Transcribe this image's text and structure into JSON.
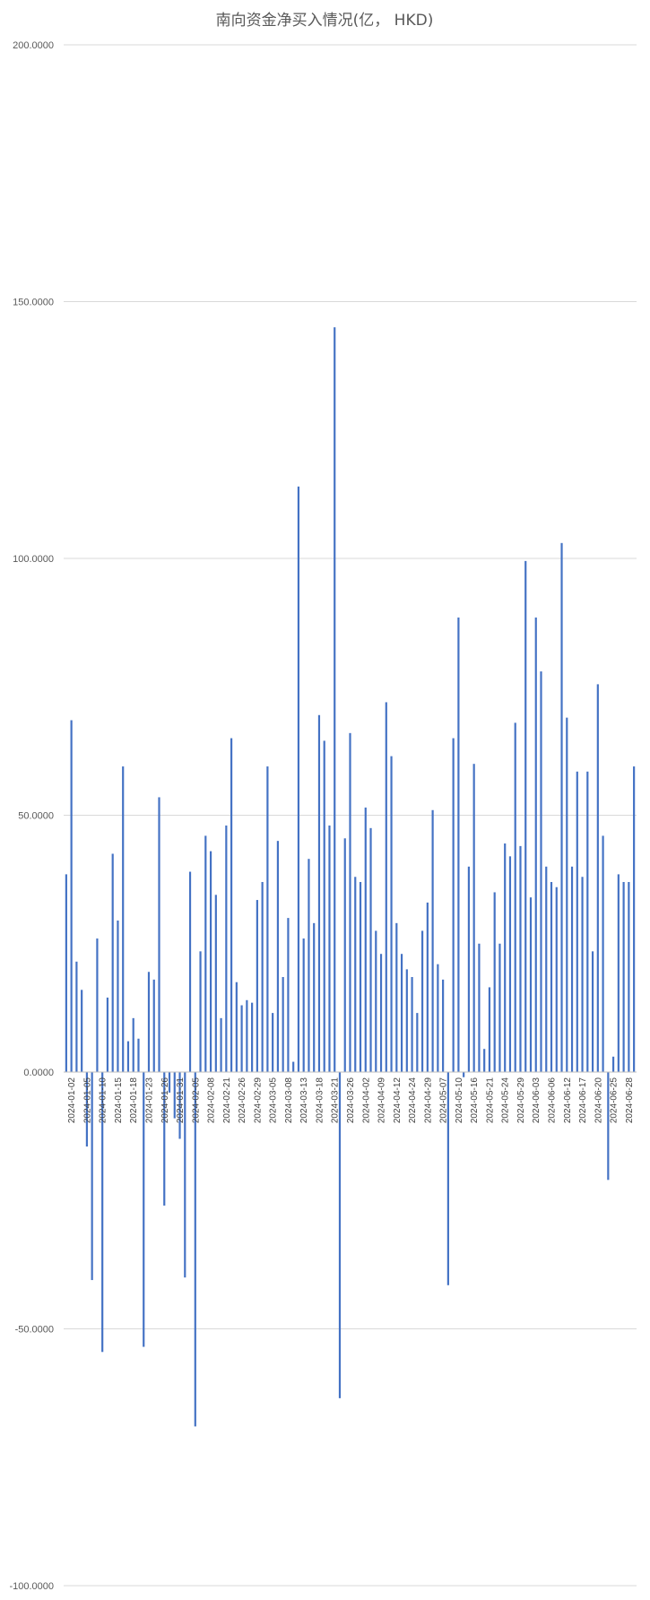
{
  "chart_data": {
    "type": "bar",
    "title": "南向资金净买入情况(亿，  HKD)",
    "xlabel": "",
    "ylabel": "",
    "ylim": [
      -100,
      200
    ],
    "yticks": [
      -100,
      -50,
      0,
      50,
      100,
      150,
      200
    ],
    "ytick_labels": [
      "-100.0000",
      "-50.0000",
      "0.0000",
      "50.0000",
      "100.0000",
      "150.0000",
      "200.0000"
    ],
    "grid": true,
    "legend": "none",
    "bar_color": "#4472C4",
    "grid_color": "#D9D9D9",
    "x_labels": [
      "2024-01-02",
      "2024-01-05",
      "2024-01-10",
      "2024-01-15",
      "2024-01-18",
      "2024-01-23",
      "2024-01-26",
      "2024-01-31",
      "2024-02-05",
      "2024-02-08",
      "2024-02-21",
      "2024-02-26",
      "2024-02-29",
      "2024-03-05",
      "2024-03-08",
      "2024-03-13",
      "2024-03-18",
      "2024-03-21",
      "2024-03-26",
      "2024-04-02",
      "2024-04-09",
      "2024-04-12",
      "2024-04-24",
      "2024-04-29",
      "2024-05-07",
      "2024-05-10",
      "2024-05-16",
      "2024-05-21",
      "2024-05-24",
      "2024-05-29",
      "2024-06-03",
      "2024-06-06",
      "2024-06-12",
      "2024-06-17",
      "2024-06-20",
      "2024-06-25",
      "2024-06-28"
    ],
    "values": [
      38.5,
      68.5,
      21.5,
      16,
      -14.5,
      -40.5,
      26,
      -54.5,
      14.5,
      42.5,
      29.5,
      59.5,
      6,
      10.5,
      6.5,
      -53.5,
      19.5,
      18,
      53.5,
      -26,
      -4,
      -9,
      -13,
      -40,
      39,
      -69,
      23.5,
      46,
      43,
      34.5,
      10.5,
      48,
      65,
      17.5,
      13,
      14,
      13.5,
      33.5,
      37,
      59.5,
      11.5,
      45,
      18.5,
      30,
      2,
      114,
      26,
      41.5,
      29,
      69.5,
      64.5,
      48,
      145,
      -63.5,
      45.5,
      66,
      38,
      37,
      51.5,
      47.5,
      27.5,
      23,
      72,
      61.5,
      29,
      23,
      20,
      18.5,
      11.5,
      27.5,
      33,
      51,
      21,
      18,
      -41.5,
      65,
      88.5,
      -1,
      40,
      60,
      25,
      4.5,
      16.5,
      35,
      25,
      44.5,
      42,
      68,
      44,
      99.5,
      34,
      88.5,
      78,
      40,
      37,
      36,
      103,
      69,
      40,
      58.5,
      38,
      58.5,
      23.5,
      75.5,
      46,
      -21,
      3,
      38.5,
      37,
      37,
      59.5
    ]
  }
}
